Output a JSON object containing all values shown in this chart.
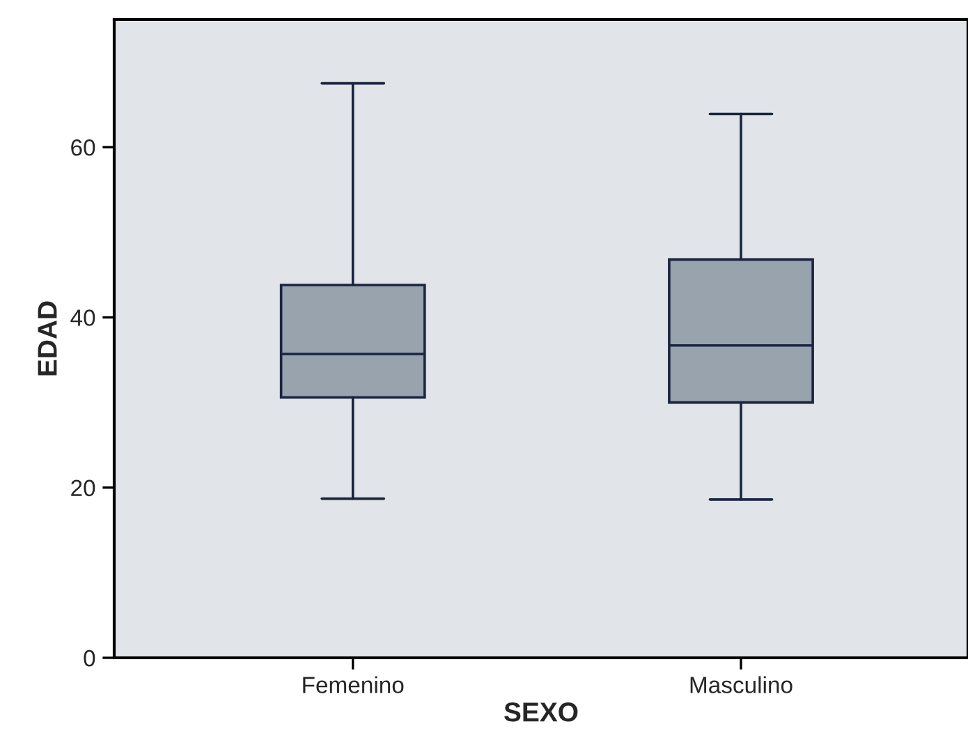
{
  "chart_data": {
    "type": "box",
    "xlabel": "SEXO",
    "ylabel": "EDAD",
    "categories": [
      "Femenino",
      "Masculino"
    ],
    "color": "#99a3ae",
    "boxes": [
      {
        "low": 18.7,
        "q1": 30.6,
        "median": 35.7,
        "q3": 43.8,
        "high": 67.5
      },
      {
        "low": 18.6,
        "q1": 30,
        "median": 36.7,
        "q3": 46.8,
        "high": 63.9
      }
    ],
    "ylim": [
      0,
      75
    ],
    "yticks": [
      0,
      20,
      40,
      60
    ],
    "grid": false,
    "legend": false
  }
}
